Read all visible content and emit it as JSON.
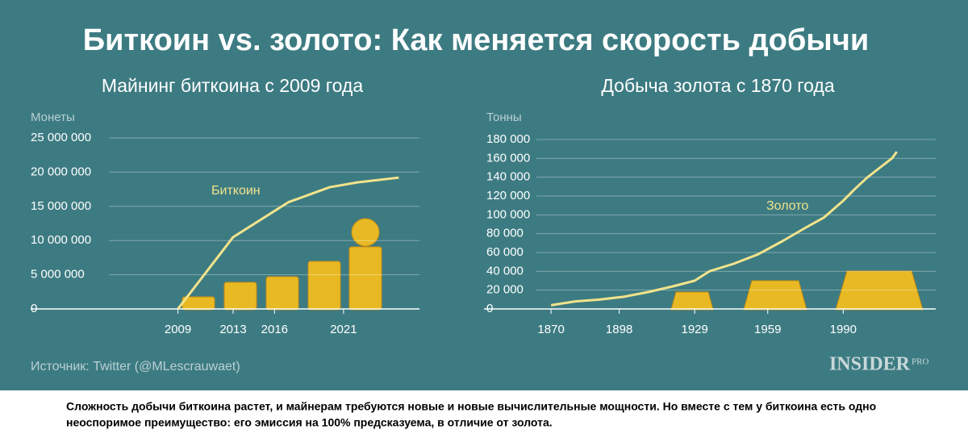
{
  "title": "Биткоин vs. золото: Как меняется скорость добычи",
  "chart_data": [
    {
      "type": "line",
      "title": "Майнинг биткоина с 2009 года",
      "y_label": "Монеты",
      "x": [
        2009,
        2013,
        2017,
        2020,
        2022,
        2025
      ],
      "series": [
        {
          "name": "Биткоин",
          "color": "#f2e38c",
          "values": [
            0,
            10500000,
            15600000,
            17800000,
            18500000,
            19200000
          ]
        }
      ],
      "xlim": [
        2004,
        2026.5
      ],
      "xticks": [
        2009,
        2013,
        2016,
        2021
      ],
      "ylim": [
        0,
        25000000
      ],
      "yticks": [
        0,
        {
          "value": 5000000,
          "label": "5 000 000"
        },
        {
          "value": 10000000,
          "label": "10 000 000"
        },
        {
          "value": 15000000,
          "label": "15 000 000"
        },
        {
          "value": 20000000,
          "label": "20 000 000"
        },
        {
          "value": 25000000,
          "label": "25 000 000"
        }
      ],
      "grid": true
    },
    {
      "type": "line",
      "title": "Добыча золота с 1870 года",
      "y_label": "Тонны",
      "x": [
        1870,
        1875,
        1880,
        1890,
        1900,
        1910,
        1920,
        1929,
        1935,
        1945,
        1955,
        1965,
        1975,
        1982,
        1990,
        1995,
        2000,
        2005,
        2010,
        2012
      ],
      "series": [
        {
          "name": "Золото",
          "color": "#f2e38c",
          "values": [
            4000,
            6000,
            8000,
            10000,
            13000,
            18000,
            24000,
            30000,
            40000,
            48000,
            58000,
            72000,
            87000,
            97000,
            115000,
            128000,
            140000,
            150000,
            160000,
            167000
          ]
        }
      ],
      "xlim": [
        1864,
        2028
      ],
      "xticks": [
        1870,
        1898,
        1929,
        1959,
        1990
      ],
      "ylim": [
        0,
        180000
      ],
      "yticks": [
        0,
        {
          "value": 20000,
          "label": "20 000"
        },
        {
          "value": 40000,
          "label": "40 000"
        },
        {
          "value": 60000,
          "label": "60 000"
        },
        {
          "value": 80000,
          "label": "80 000"
        },
        {
          "value": 100000,
          "label": "100 000"
        },
        {
          "value": 120000,
          "label": "120 000"
        },
        {
          "value": 140000,
          "label": "140 000"
        },
        {
          "value": 160000,
          "label": "160 000"
        },
        {
          "value": 180000,
          "label": "180 000"
        }
      ],
      "grid": true
    }
  ],
  "source": "Источник: Twitter (@MLescrauwaet)",
  "brand": "INSIDER",
  "brand_suffix": "PRO",
  "caption": [
    "Сложность добычи биткоина растет, и майнерам требуются новые и новые вычислительные мощности. Но вместе с тем у биткоина есть одно",
    "неоспоримое преимущество: его эмиссия на 100% предсказуема, в отличие от золота."
  ]
}
